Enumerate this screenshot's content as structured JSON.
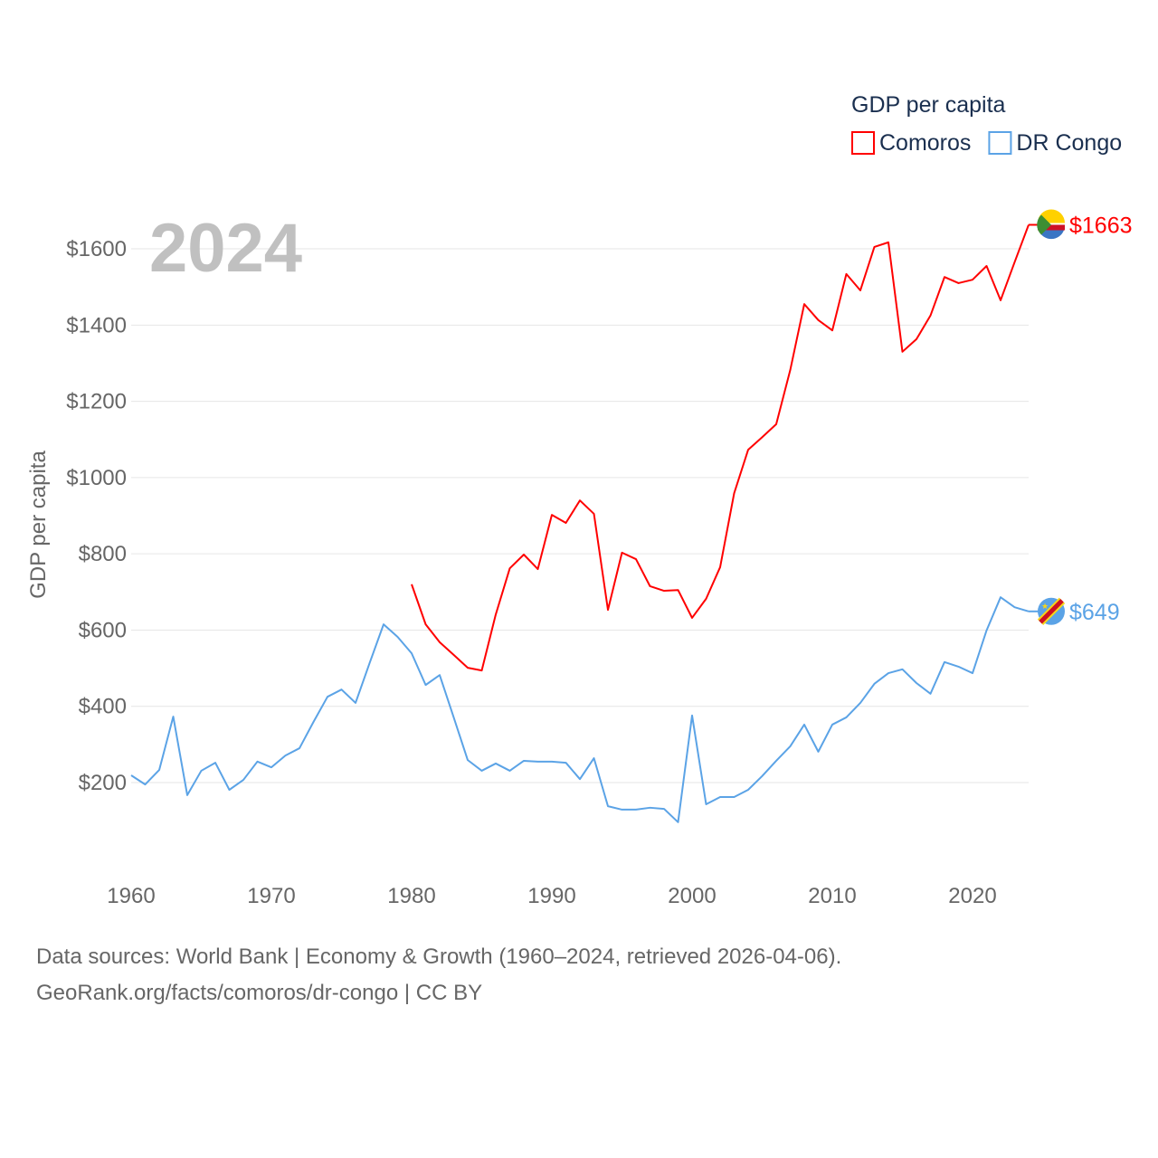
{
  "chart_data": {
    "type": "line",
    "title": "GDP per capita",
    "year_label": "2024",
    "ylabel": "GDP per capita",
    "xlabel": "",
    "xlim": [
      1960,
      2024
    ],
    "ylim": [
      0,
      1700
    ],
    "x_ticks": [
      1960,
      1970,
      1980,
      1990,
      2000,
      2010,
      2020
    ],
    "y_ticks": [
      200,
      400,
      600,
      800,
      1000,
      1200,
      1400,
      1600
    ],
    "y_tick_labels": [
      "$200",
      "$400",
      "$600",
      "$800",
      "$1000",
      "$1200",
      "$1400",
      "$1600"
    ],
    "legend_placement": "top-right",
    "series": [
      {
        "name": "Comoros",
        "color": "#ff0000",
        "end_label": "$1663",
        "start_year": 1980,
        "values": [
          720,
          615,
          568,
          535,
          501,
          494,
          641,
          762,
          798,
          760,
          902,
          881,
          940,
          905,
          653,
          803,
          786,
          715,
          703,
          705,
          632,
          682,
          765,
          959,
          1073,
          1106,
          1140,
          1282,
          1455,
          1413,
          1386,
          1534,
          1491,
          1605,
          1617,
          1330,
          1363,
          1425,
          1526,
          1510,
          1519,
          1555,
          1465,
          1565,
          1663
        ]
      },
      {
        "name": "DR Congo",
        "color": "#5ba3e6",
        "end_label": "$649",
        "start_year": 1960,
        "values": [
          219,
          195,
          233,
          373,
          167,
          231,
          252,
          181,
          207,
          255,
          240,
          271,
          290,
          359,
          425,
          444,
          409,
          513,
          615,
          582,
          539,
          456,
          482,
          371,
          259,
          231,
          250,
          231,
          257,
          255,
          255,
          252,
          209,
          264,
          138,
          129,
          129,
          134,
          131,
          96,
          376,
          143,
          162,
          162,
          181,
          217,
          257,
          295,
          352,
          281,
          352,
          371,
          409,
          459,
          487,
          497,
          461,
          433,
          516,
          504,
          487,
          599,
          686,
          660,
          649
        ]
      }
    ]
  },
  "footer": {
    "line1": "Data sources: World Bank | Economy & Growth (1960–2024, retrieved 2026-04-06).",
    "line2": "GeoRank.org/facts/comoros/dr-congo | CC BY"
  }
}
